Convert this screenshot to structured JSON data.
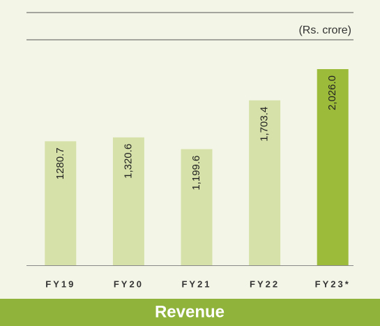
{
  "chart_data": {
    "type": "bar",
    "unit_label": "(Rs. crore)",
    "title": "Revenue",
    "categories": [
      "FY19",
      "FY20",
      "FY21",
      "FY22",
      "FY23*"
    ],
    "values": [
      1280.7,
      1320.6,
      1199.6,
      1703.4,
      2026.0
    ],
    "value_labels": [
      "1280.7",
      "1,320.6",
      "1,199.6",
      "1,703.4",
      "2,026.0"
    ],
    "colors": [
      "#d5e1a8",
      "#d5e1a8",
      "#d5e1a8",
      "#d5e1a8",
      "#9dbb3b"
    ],
    "ylim": [
      0,
      2300
    ]
  }
}
